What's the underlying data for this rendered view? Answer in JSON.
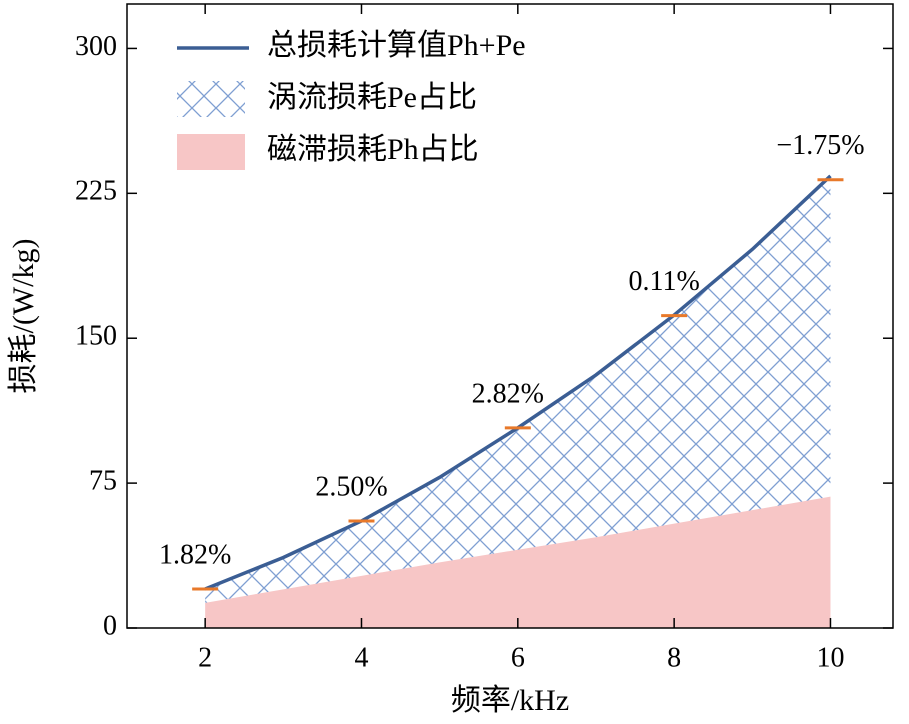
{
  "chart_data": {
    "type": "area_line",
    "x_label": "频率/kHz",
    "y_label": "损耗/(W/kg)",
    "x": [
      2,
      3,
      4,
      5,
      6,
      7,
      8,
      9,
      10
    ],
    "series": [
      {
        "name": "总损耗计算值Ph+Pe",
        "color": "#3b5e94",
        "values": [
          20.2,
          36.5,
          55.4,
          78,
          103.6,
          131,
          162,
          196,
          234
        ]
      },
      {
        "name": "磁滞损耗Ph占比",
        "color": "#f7c6c6",
        "values": [
          13,
          20,
          27,
          34,
          40.5,
          47,
          54,
          61,
          68
        ]
      }
    ],
    "eddy_area": {
      "name": "涡流损耗Pe占比",
      "color": "#7f9fd2"
    },
    "measured": {
      "color": "#e8792a",
      "x": [
        2,
        4,
        6,
        8,
        10
      ],
      "values": [
        20.2,
        55.4,
        103.6,
        161.7,
        232
      ],
      "annotations": [
        "1.82%",
        "2.50%",
        "2.82%",
        "0.11%",
        "−1.75%"
      ]
    },
    "xlim": [
      1,
      10.8
    ],
    "ylim": [
      0,
      323
    ],
    "xticks": [
      2,
      4,
      6,
      8,
      10
    ],
    "yticks": [
      0,
      75,
      150,
      225,
      300
    ],
    "legend": "upper left"
  }
}
